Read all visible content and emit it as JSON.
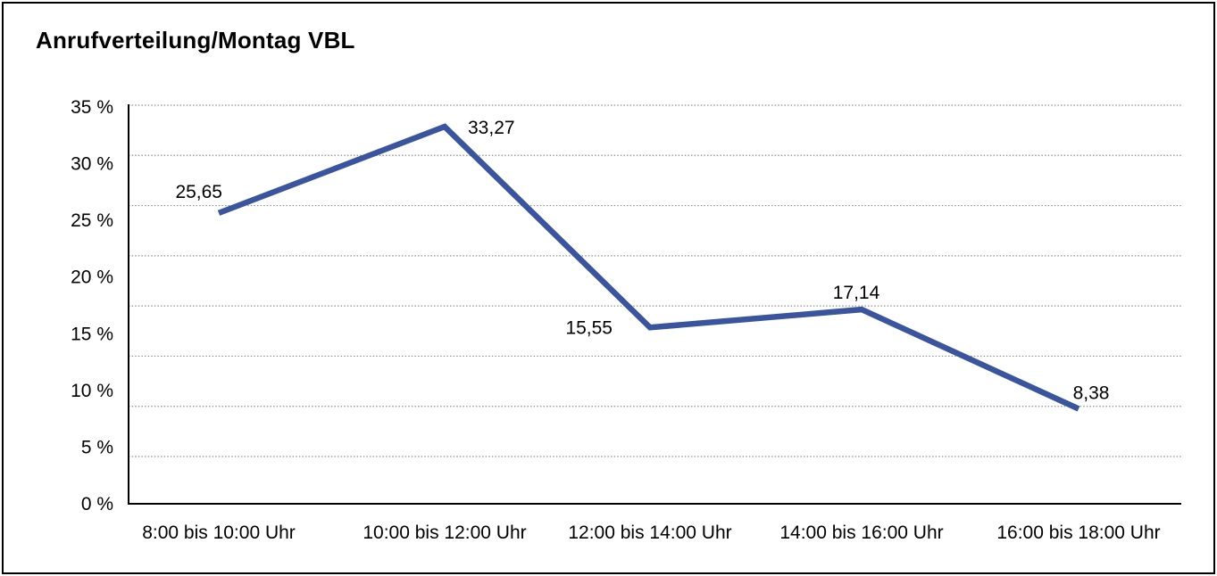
{
  "title": "Anrufverteilung/Montag VBL",
  "chart_data": {
    "type": "line",
    "title": "Anrufverteilung/Montag VBL",
    "categories": [
      "8:00 bis 10:00 Uhr",
      "10:00 bis 12:00 Uhr",
      "12:00 bis 14:00 Uhr",
      "14:00 bis 16:00 Uhr",
      "16:00 bis 18:00 Uhr"
    ],
    "values": [
      25.65,
      33.27,
      15.55,
      17.14,
      8.38
    ],
    "point_labels": [
      "25,65",
      "33,27",
      "15,55",
      "17,14",
      "8,38"
    ],
    "xlabel": "",
    "ylabel": "",
    "ylim": [
      0,
      35
    ],
    "y_tick_values": [
      35,
      30,
      25,
      20,
      15,
      10,
      5,
      0
    ],
    "y_ticks": [
      "35 %",
      "30 %",
      "25 %",
      "20 %",
      "15 %",
      "10 %",
      "5 %",
      "0 %"
    ],
    "unit": "%",
    "decimal_separator": ",",
    "grid": "horizontal-dotted",
    "legend": "none",
    "colors": {
      "line": "#3A549E",
      "axis": "#000000",
      "gridline": "#8F8F8F",
      "text": "#000000",
      "background": "#FFFFFF",
      "frame_border": "#000000"
    }
  }
}
